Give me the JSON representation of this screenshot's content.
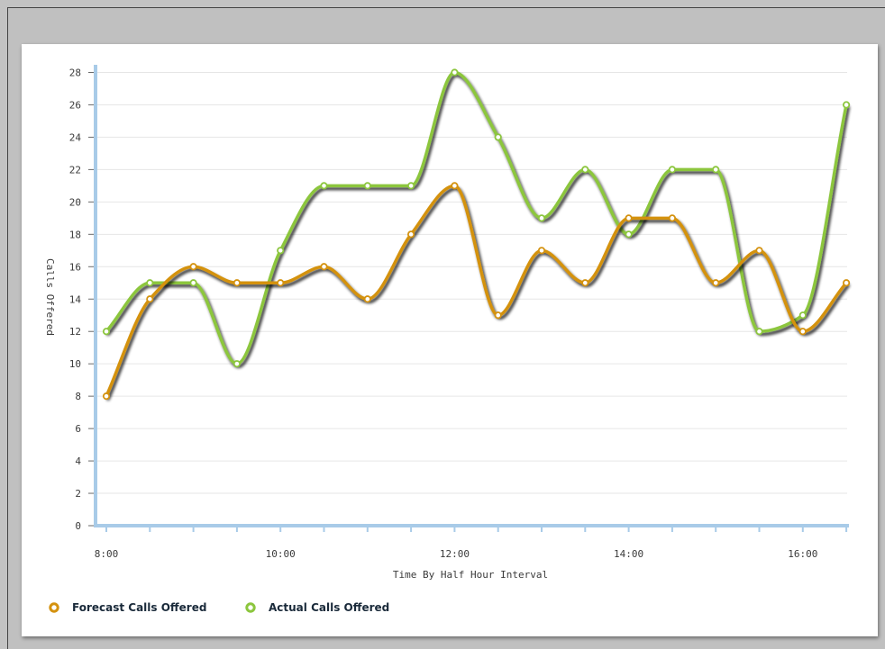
{
  "chart_data": {
    "type": "line",
    "title": "",
    "xlabel": "Time By Half Hour Interval",
    "ylabel": "Calls Offered",
    "ylim": [
      0,
      28
    ],
    "yticks": [
      0,
      2,
      4,
      6,
      8,
      10,
      12,
      14,
      16,
      18,
      20,
      22,
      24,
      26,
      28
    ],
    "x": [
      "8:00",
      "8:30",
      "9:00",
      "9:30",
      "10:00",
      "10:30",
      "11:00",
      "11:30",
      "12:00",
      "12:30",
      "13:00",
      "13:30",
      "14:00",
      "14:30",
      "15:00",
      "15:30",
      "16:00",
      "16:30"
    ],
    "x_tick_labels": [
      "8:00",
      "10:00",
      "12:00",
      "14:00",
      "16:00"
    ],
    "grid": true,
    "legend_position": "bottom-left",
    "series": [
      {
        "name": "Forecast Calls Offered",
        "color": "#d4920f",
        "values": [
          8,
          14,
          16,
          15,
          15,
          16,
          14,
          18,
          21,
          13,
          17,
          15,
          19,
          19,
          15,
          17,
          12,
          15
        ]
      },
      {
        "name": "Actual Calls Offered",
        "color": "#8cc63e",
        "values": [
          12,
          15,
          15,
          10,
          17,
          21,
          21,
          21,
          28,
          24,
          19,
          22,
          18,
          22,
          22,
          12,
          13,
          26
        ]
      }
    ]
  }
}
